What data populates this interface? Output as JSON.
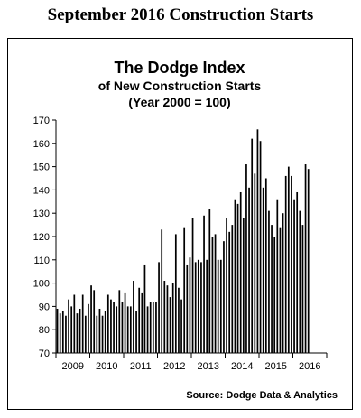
{
  "page": {
    "heading": "September 2016 Construction Starts"
  },
  "chart_data": {
    "type": "bar",
    "title": "The Dodge Index",
    "subtitle": "of New Construction Starts",
    "subtitle2": "(Year 2000 = 100)",
    "source": "Source:  Dodge Data & Analytics",
    "ylim": [
      70,
      170
    ],
    "yticks": [
      70,
      80,
      90,
      100,
      110,
      120,
      130,
      140,
      150,
      160,
      170
    ],
    "xlabels": [
      "2009",
      "2010",
      "2011",
      "2012",
      "2013",
      "2014",
      "2015",
      "2016"
    ],
    "x_start": "2009-01",
    "grid": false,
    "bar_color": "#000000",
    "values": [
      89,
      87,
      88,
      86,
      93,
      90,
      95,
      87,
      89,
      95,
      86,
      91,
      99,
      97,
      86,
      89,
      86,
      88,
      95,
      93,
      92,
      90,
      97,
      92,
      96,
      90,
      90,
      101,
      88,
      98,
      96,
      108,
      90,
      92,
      92,
      92,
      109,
      123,
      101,
      99,
      94,
      100,
      121,
      98,
      93,
      124,
      108,
      111,
      128,
      109,
      110,
      109,
      129,
      110,
      132,
      120,
      121,
      110,
      110,
      118,
      128,
      122,
      125,
      136,
      134,
      139,
      128,
      151,
      141,
      162,
      147,
      166,
      161,
      141,
      145,
      131,
      125,
      120,
      136,
      124,
      130,
      146,
      150,
      146,
      136,
      139,
      131,
      125,
      151,
      149
    ]
  }
}
